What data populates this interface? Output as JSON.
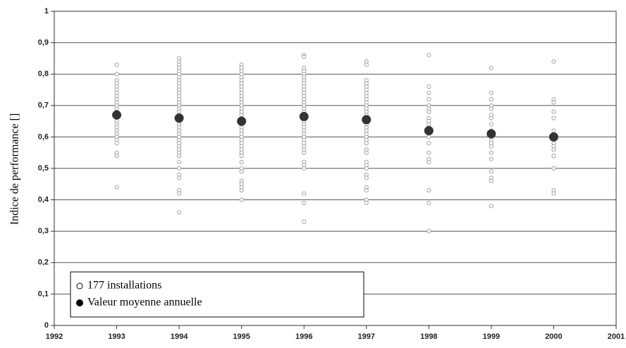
{
  "chart_data": {
    "type": "scatter",
    "y_label": "Indice de performance []",
    "xlim": [
      1992,
      2001
    ],
    "xticks": [
      1992,
      1993,
      1994,
      1995,
      1996,
      1997,
      1998,
      1999,
      2000,
      2001
    ],
    "ylim": [
      0,
      1
    ],
    "yticks": [
      0,
      {
        "value": 0.1,
        "label": "0,1"
      },
      {
        "value": 0.2,
        "label": "0,2"
      },
      {
        "value": 0.3,
        "label": "0,3"
      },
      {
        "value": 0.4,
        "label": "0,4"
      },
      {
        "value": 0.5,
        "label": "0,5"
      },
      {
        "value": 0.6,
        "label": "0,6"
      },
      {
        "value": 0.7,
        "label": "0,7"
      },
      {
        "value": 0.8,
        "label": "0,8"
      },
      {
        "value": 0.9,
        "label": "0,9"
      },
      1
    ],
    "grid": true,
    "legend": "lower left",
    "series": [
      {
        "name": "177 installations",
        "color": "#999999",
        "marker": "hollow",
        "x": [
          1993,
          1993,
          1993,
          1993,
          1993,
          1993,
          1993,
          1993,
          1993,
          1993,
          1993,
          1993,
          1993,
          1993,
          1993,
          1993,
          1993,
          1993,
          1993,
          1993,
          1993,
          1993,
          1993,
          1993,
          1993,
          1993,
          1994,
          1994,
          1994,
          1994,
          1994,
          1994,
          1994,
          1994,
          1994,
          1994,
          1994,
          1994,
          1994,
          1994,
          1994,
          1994,
          1994,
          1994,
          1994,
          1994,
          1994,
          1994,
          1994,
          1994,
          1994,
          1994,
          1994,
          1994,
          1994,
          1994,
          1994,
          1994,
          1994,
          1994,
          1994,
          1994,
          1994,
          1994,
          1994,
          1995,
          1995,
          1995,
          1995,
          1995,
          1995,
          1995,
          1995,
          1995,
          1995,
          1995,
          1995,
          1995,
          1995,
          1995,
          1995,
          1995,
          1995,
          1995,
          1995,
          1995,
          1995,
          1995,
          1995,
          1995,
          1995,
          1995,
          1995,
          1995,
          1995,
          1995,
          1995,
          1995,
          1995,
          1995,
          1995,
          1995,
          1995,
          1996,
          1996,
          1996,
          1996,
          1996,
          1996,
          1996,
          1996,
          1996,
          1996,
          1996,
          1996,
          1996,
          1996,
          1996,
          1996,
          1996,
          1996,
          1996,
          1996,
          1996,
          1996,
          1996,
          1996,
          1996,
          1996,
          1996,
          1996,
          1996,
          1996,
          1996,
          1996,
          1996,
          1996,
          1996,
          1996,
          1997,
          1997,
          1997,
          1997,
          1997,
          1997,
          1997,
          1997,
          1997,
          1997,
          1997,
          1997,
          1997,
          1997,
          1997,
          1997,
          1997,
          1997,
          1997,
          1997,
          1997,
          1997,
          1997,
          1997,
          1997,
          1997,
          1997,
          1997,
          1997,
          1997,
          1997,
          1997,
          1997,
          1997,
          1998,
          1998,
          1998,
          1998,
          1998,
          1998,
          1998,
          1998,
          1998,
          1998,
          1998,
          1998,
          1998,
          1998,
          1998,
          1998,
          1998,
          1998,
          1998,
          1998,
          1998,
          1999,
          1999,
          1999,
          1999,
          1999,
          1999,
          1999,
          1999,
          1999,
          1999,
          1999,
          1999,
          1999,
          1999,
          1999,
          1999,
          1999,
          1999,
          1999,
          1999,
          2000,
          2000,
          2000,
          2000,
          2000,
          2000,
          2000,
          2000,
          2000,
          2000,
          2000,
          2000,
          2000,
          2000
        ],
        "values": [
          0.83,
          0.8,
          0.78,
          0.77,
          0.76,
          0.75,
          0.74,
          0.73,
          0.72,
          0.71,
          0.7,
          0.69,
          0.68,
          0.67,
          0.66,
          0.65,
          0.64,
          0.63,
          0.62,
          0.61,
          0.6,
          0.59,
          0.58,
          0.55,
          0.54,
          0.44,
          0.85,
          0.84,
          0.83,
          0.82,
          0.81,
          0.8,
          0.79,
          0.78,
          0.77,
          0.76,
          0.75,
          0.74,
          0.73,
          0.72,
          0.71,
          0.7,
          0.69,
          0.68,
          0.67,
          0.66,
          0.65,
          0.64,
          0.63,
          0.62,
          0.61,
          0.6,
          0.59,
          0.58,
          0.57,
          0.56,
          0.55,
          0.54,
          0.52,
          0.5,
          0.48,
          0.47,
          0.43,
          0.42,
          0.36,
          0.83,
          0.82,
          0.81,
          0.8,
          0.79,
          0.78,
          0.77,
          0.76,
          0.75,
          0.74,
          0.73,
          0.72,
          0.71,
          0.7,
          0.69,
          0.68,
          0.67,
          0.66,
          0.65,
          0.64,
          0.63,
          0.62,
          0.61,
          0.6,
          0.59,
          0.58,
          0.57,
          0.56,
          0.55,
          0.54,
          0.52,
          0.5,
          0.49,
          0.46,
          0.45,
          0.44,
          0.43,
          0.4,
          0.86,
          0.855,
          0.82,
          0.81,
          0.8,
          0.79,
          0.78,
          0.77,
          0.76,
          0.75,
          0.74,
          0.73,
          0.72,
          0.71,
          0.7,
          0.69,
          0.68,
          0.67,
          0.66,
          0.65,
          0.64,
          0.63,
          0.62,
          0.61,
          0.6,
          0.59,
          0.58,
          0.57,
          0.56,
          0.55,
          0.52,
          0.51,
          0.5,
          0.42,
          0.39,
          0.33,
          0.84,
          0.83,
          0.78,
          0.77,
          0.76,
          0.75,
          0.74,
          0.73,
          0.72,
          0.71,
          0.7,
          0.69,
          0.68,
          0.67,
          0.66,
          0.65,
          0.64,
          0.63,
          0.62,
          0.61,
          0.6,
          0.59,
          0.58,
          0.56,
          0.55,
          0.52,
          0.51,
          0.5,
          0.48,
          0.47,
          0.44,
          0.43,
          0.4,
          0.39,
          0.86,
          0.76,
          0.74,
          0.72,
          0.7,
          0.69,
          0.68,
          0.66,
          0.65,
          0.64,
          0.63,
          0.62,
          0.61,
          0.6,
          0.58,
          0.55,
          0.53,
          0.52,
          0.43,
          0.39,
          0.3,
          0.82,
          0.74,
          0.72,
          0.7,
          0.69,
          0.67,
          0.66,
          0.64,
          0.62,
          0.61,
          0.6,
          0.59,
          0.58,
          0.57,
          0.55,
          0.53,
          0.49,
          0.47,
          0.46,
          0.38,
          0.84,
          0.72,
          0.71,
          0.68,
          0.66,
          0.62,
          0.6,
          0.58,
          0.57,
          0.56,
          0.54,
          0.5,
          0.43,
          0.42
        ]
      },
      {
        "name": "Valeur moyenne annuelle",
        "color": "#333333",
        "marker": "filled",
        "x": [
          1993,
          1994,
          1995,
          1996,
          1997,
          1998,
          1999,
          2000
        ],
        "values": [
          0.67,
          0.66,
          0.65,
          0.665,
          0.655,
          0.62,
          0.61,
          0.6
        ]
      }
    ]
  }
}
